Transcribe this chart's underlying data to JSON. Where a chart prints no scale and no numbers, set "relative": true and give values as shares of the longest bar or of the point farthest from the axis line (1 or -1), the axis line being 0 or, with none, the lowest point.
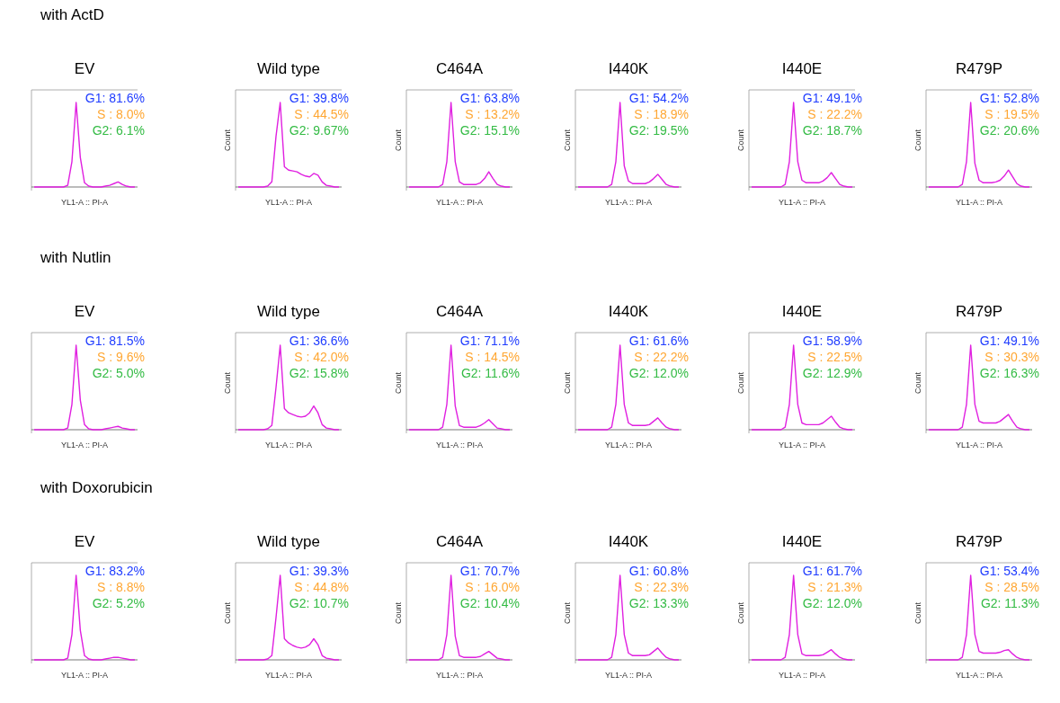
{
  "chart_data": [
    {
      "type": "other",
      "title": "with ActD"
    },
    {
      "type": "line",
      "title": "EV",
      "relative": true,
      "xlabel": "YL1-A :: PI-A",
      "annotations": [
        "G1: 81.6%",
        "S : 8.0%",
        "G2: 6.1%"
      ],
      "categories": [
        null,
        null,
        null,
        null,
        null,
        null,
        null,
        null,
        null,
        null,
        null,
        null,
        null,
        null,
        null,
        null,
        null,
        null,
        null,
        null,
        null,
        null,
        null,
        null,
        null
      ],
      "series": [
        {
          "color": "#e020e0",
          "values": [
            0,
            0,
            0,
            0,
            0,
            0,
            0,
            0,
            0.02,
            0.3,
            1,
            0.35,
            0.05,
            0.01,
            0,
            0,
            0,
            0.01,
            0.02,
            0.04,
            0.06,
            0.03,
            0.01,
            0,
            0
          ]
        }
      ]
    },
    {
      "type": "line",
      "title": "Wild type",
      "relative": true,
      "xlabel": "YL1-A :: PI-A",
      "ylabel": "Count",
      "annotations": [
        "G1: 39.8%",
        "S : 44.5%",
        "G2: 9.67%"
      ],
      "categories": [
        null,
        null,
        null,
        null,
        null,
        null,
        null,
        null,
        null,
        null,
        null,
        null,
        null,
        null,
        null,
        null,
        null,
        null,
        null,
        null,
        null,
        null,
        null,
        null,
        null
      ],
      "series": [
        {
          "color": "#e020e0",
          "values": [
            0,
            0,
            0,
            0,
            0,
            0,
            0,
            0.01,
            0.06,
            0.6,
            1,
            0.24,
            0.2,
            0.19,
            0.18,
            0.15,
            0.13,
            0.12,
            0.16,
            0.14,
            0.06,
            0.02,
            0.01,
            0,
            0
          ]
        }
      ]
    },
    {
      "type": "line",
      "title": "C464A",
      "relative": true,
      "xlabel": "YL1-A :: PI-A",
      "ylabel": "Count",
      "annotations": [
        "G1: 63.8%",
        "S : 13.2%",
        "G2: 15.1%"
      ],
      "categories": [
        null,
        null,
        null,
        null,
        null,
        null,
        null,
        null,
        null,
        null,
        null,
        null,
        null,
        null,
        null,
        null,
        null,
        null,
        null,
        null,
        null,
        null,
        null,
        null,
        null
      ],
      "series": [
        {
          "color": "#e020e0",
          "values": [
            0,
            0,
            0,
            0,
            0,
            0,
            0,
            0,
            0.03,
            0.3,
            1,
            0.3,
            0.06,
            0.03,
            0.03,
            0.03,
            0.03,
            0.05,
            0.1,
            0.18,
            0.1,
            0.03,
            0.01,
            0,
            0
          ]
        }
      ]
    },
    {
      "type": "line",
      "title": "I440K",
      "relative": true,
      "xlabel": "YL1-A :: PI-A",
      "ylabel": "Count",
      "annotations": [
        "G1: 54.2%",
        "S : 18.9%",
        "G2: 19.5%"
      ],
      "categories": [
        null,
        null,
        null,
        null,
        null,
        null,
        null,
        null,
        null,
        null,
        null,
        null,
        null,
        null,
        null,
        null,
        null,
        null,
        null,
        null,
        null,
        null,
        null,
        null,
        null
      ],
      "series": [
        {
          "color": "#e020e0",
          "values": [
            0,
            0,
            0,
            0,
            0,
            0,
            0,
            0,
            0.03,
            0.3,
            1,
            0.25,
            0.07,
            0.04,
            0.04,
            0.04,
            0.04,
            0.06,
            0.1,
            0.15,
            0.09,
            0.03,
            0.01,
            0,
            0
          ]
        }
      ]
    },
    {
      "type": "line",
      "title": "I440E",
      "relative": true,
      "xlabel": "YL1-A :: PI-A",
      "ylabel": "Count",
      "annotations": [
        "G1: 49.1%",
        "S : 22.2%",
        "G2: 18.7%"
      ],
      "categories": [
        null,
        null,
        null,
        null,
        null,
        null,
        null,
        null,
        null,
        null,
        null,
        null,
        null,
        null,
        null,
        null,
        null,
        null,
        null,
        null,
        null,
        null,
        null,
        null,
        null
      ],
      "series": [
        {
          "color": "#e020e0",
          "values": [
            0,
            0,
            0,
            0,
            0,
            0,
            0,
            0,
            0.03,
            0.3,
            1,
            0.3,
            0.08,
            0.05,
            0.05,
            0.05,
            0.05,
            0.07,
            0.11,
            0.17,
            0.1,
            0.03,
            0.01,
            0,
            0
          ]
        }
      ]
    },
    {
      "type": "line",
      "title": "R479P",
      "relative": true,
      "xlabel": "YL1-A :: PI-A",
      "ylabel": "Count",
      "annotations": [
        "G1: 52.8%",
        "S : 19.5%",
        "G2: 20.6%"
      ],
      "categories": [
        null,
        null,
        null,
        null,
        null,
        null,
        null,
        null,
        null,
        null,
        null,
        null,
        null,
        null,
        null,
        null,
        null,
        null,
        null,
        null,
        null,
        null,
        null,
        null,
        null
      ],
      "series": [
        {
          "color": "#e020e0",
          "values": [
            0,
            0,
            0,
            0,
            0,
            0,
            0,
            0,
            0.03,
            0.3,
            1,
            0.28,
            0.08,
            0.05,
            0.05,
            0.05,
            0.06,
            0.08,
            0.13,
            0.2,
            0.12,
            0.04,
            0.01,
            0,
            0
          ]
        }
      ]
    },
    {
      "type": "other",
      "title": "with Nutlin"
    },
    {
      "type": "line",
      "title": "EV",
      "relative": true,
      "xlabel": "YL1-A :: PI-A",
      "annotations": [
        "G1: 81.5%",
        "S : 9.6%",
        "G2: 5.0%"
      ],
      "categories": [
        null,
        null,
        null,
        null,
        null,
        null,
        null,
        null,
        null,
        null,
        null,
        null,
        null,
        null,
        null,
        null,
        null,
        null,
        null,
        null,
        null,
        null,
        null,
        null,
        null
      ],
      "series": [
        {
          "color": "#e020e0",
          "values": [
            0,
            0,
            0,
            0,
            0,
            0,
            0,
            0,
            0.02,
            0.3,
            1,
            0.35,
            0.06,
            0.01,
            0,
            0,
            0,
            0.01,
            0.02,
            0.03,
            0.04,
            0.02,
            0.01,
            0,
            0
          ]
        }
      ]
    },
    {
      "type": "line",
      "title": "Wild type",
      "relative": true,
      "xlabel": "YL1-A :: PI-A",
      "ylabel": "Count",
      "annotations": [
        "G1: 36.6%",
        "S : 42.0%",
        "G2: 15.8%"
      ],
      "categories": [
        null,
        null,
        null,
        null,
        null,
        null,
        null,
        null,
        null,
        null,
        null,
        null,
        null,
        null,
        null,
        null,
        null,
        null,
        null,
        null,
        null,
        null,
        null,
        null,
        null
      ],
      "series": [
        {
          "color": "#e020e0",
          "values": [
            0,
            0,
            0,
            0,
            0,
            0,
            0,
            0.01,
            0.05,
            0.5,
            1,
            0.25,
            0.2,
            0.18,
            0.16,
            0.15,
            0.16,
            0.2,
            0.28,
            0.2,
            0.06,
            0.02,
            0.01,
            0,
            0
          ]
        }
      ]
    },
    {
      "type": "line",
      "title": "C464A",
      "relative": true,
      "xlabel": "YL1-A :: PI-A",
      "ylabel": "Count",
      "annotations": [
        "G1: 71.1%",
        "S : 14.5%",
        "G2: 11.6%"
      ],
      "categories": [
        null,
        null,
        null,
        null,
        null,
        null,
        null,
        null,
        null,
        null,
        null,
        null,
        null,
        null,
        null,
        null,
        null,
        null,
        null,
        null,
        null,
        null,
        null,
        null,
        null
      ],
      "series": [
        {
          "color": "#e020e0",
          "values": [
            0,
            0,
            0,
            0,
            0,
            0,
            0,
            0,
            0.03,
            0.3,
            1,
            0.28,
            0.05,
            0.03,
            0.03,
            0.03,
            0.03,
            0.05,
            0.08,
            0.12,
            0.07,
            0.02,
            0.01,
            0,
            0
          ]
        }
      ]
    },
    {
      "type": "line",
      "title": "I440K",
      "relative": true,
      "xlabel": "YL1-A :: PI-A",
      "ylabel": "Count",
      "annotations": [
        "G1: 61.6%",
        "S : 22.2%",
        "G2: 12.0%"
      ],
      "categories": [
        null,
        null,
        null,
        null,
        null,
        null,
        null,
        null,
        null,
        null,
        null,
        null,
        null,
        null,
        null,
        null,
        null,
        null,
        null,
        null,
        null,
        null,
        null,
        null,
        null
      ],
      "series": [
        {
          "color": "#e020e0",
          "values": [
            0,
            0,
            0,
            0,
            0,
            0,
            0,
            0,
            0.03,
            0.3,
            1,
            0.3,
            0.08,
            0.05,
            0.05,
            0.05,
            0.05,
            0.06,
            0.1,
            0.14,
            0.08,
            0.03,
            0.01,
            0,
            0
          ]
        }
      ]
    },
    {
      "type": "line",
      "title": "I440E",
      "relative": true,
      "xlabel": "YL1-A :: PI-A",
      "ylabel": "Count",
      "annotations": [
        "G1: 58.9%",
        "S : 22.5%",
        "G2: 12.9%"
      ],
      "categories": [
        null,
        null,
        null,
        null,
        null,
        null,
        null,
        null,
        null,
        null,
        null,
        null,
        null,
        null,
        null,
        null,
        null,
        null,
        null,
        null,
        null,
        null,
        null,
        null,
        null
      ],
      "series": [
        {
          "color": "#e020e0",
          "values": [
            0,
            0,
            0,
            0,
            0,
            0,
            0,
            0,
            0.03,
            0.3,
            1,
            0.3,
            0.08,
            0.06,
            0.06,
            0.06,
            0.06,
            0.08,
            0.12,
            0.16,
            0.09,
            0.03,
            0.01,
            0,
            0
          ]
        }
      ]
    },
    {
      "type": "line",
      "title": "R479P",
      "relative": true,
      "xlabel": "YL1-A :: PI-A",
      "ylabel": "Count",
      "annotations": [
        "G1: 49.1%",
        "S : 30.3%",
        "G2: 16.3%"
      ],
      "categories": [
        null,
        null,
        null,
        null,
        null,
        null,
        null,
        null,
        null,
        null,
        null,
        null,
        null,
        null,
        null,
        null,
        null,
        null,
        null,
        null,
        null,
        null,
        null,
        null,
        null
      ],
      "series": [
        {
          "color": "#e020e0",
          "values": [
            0,
            0,
            0,
            0,
            0,
            0,
            0,
            0,
            0.03,
            0.3,
            1,
            0.3,
            0.1,
            0.08,
            0.08,
            0.08,
            0.08,
            0.1,
            0.14,
            0.18,
            0.1,
            0.03,
            0.01,
            0,
            0
          ]
        }
      ]
    },
    {
      "type": "other",
      "title": "with Doxorubicin"
    },
    {
      "type": "line",
      "title": "EV",
      "relative": true,
      "xlabel": "YL1-A :: PI-A",
      "annotations": [
        "G1: 83.2%",
        "S : 8.8%",
        "G2: 5.2%"
      ],
      "categories": [
        null,
        null,
        null,
        null,
        null,
        null,
        null,
        null,
        null,
        null,
        null,
        null,
        null,
        null,
        null,
        null,
        null,
        null,
        null,
        null,
        null,
        null,
        null,
        null,
        null
      ],
      "series": [
        {
          "color": "#e020e0",
          "values": [
            0,
            0,
            0,
            0,
            0,
            0,
            0,
            0,
            0.02,
            0.3,
            1,
            0.35,
            0.05,
            0.01,
            0,
            0,
            0,
            0.01,
            0.02,
            0.03,
            0.03,
            0.02,
            0.01,
            0,
            0
          ]
        }
      ]
    },
    {
      "type": "line",
      "title": "Wild type",
      "relative": true,
      "xlabel": "YL1-A :: PI-A",
      "ylabel": "Count",
      "annotations": [
        "G1: 39.3%",
        "S : 44.8%",
        "G2: 10.7%"
      ],
      "categories": [
        null,
        null,
        null,
        null,
        null,
        null,
        null,
        null,
        null,
        null,
        null,
        null,
        null,
        null,
        null,
        null,
        null,
        null,
        null,
        null,
        null,
        null,
        null,
        null,
        null
      ],
      "series": [
        {
          "color": "#e020e0",
          "values": [
            0,
            0,
            0,
            0,
            0,
            0,
            0,
            0.01,
            0.05,
            0.5,
            1,
            0.25,
            0.2,
            0.17,
            0.15,
            0.14,
            0.15,
            0.18,
            0.25,
            0.18,
            0.05,
            0.02,
            0.01,
            0,
            0
          ]
        }
      ]
    },
    {
      "type": "line",
      "title": "C464A",
      "relative": true,
      "xlabel": "YL1-A :: PI-A",
      "ylabel": "Count",
      "annotations": [
        "G1: 70.7%",
        "S : 16.0%",
        "G2: 10.4%"
      ],
      "categories": [
        null,
        null,
        null,
        null,
        null,
        null,
        null,
        null,
        null,
        null,
        null,
        null,
        null,
        null,
        null,
        null,
        null,
        null,
        null,
        null,
        null,
        null,
        null,
        null,
        null
      ],
      "series": [
        {
          "color": "#e020e0",
          "values": [
            0,
            0,
            0,
            0,
            0,
            0,
            0,
            0,
            0.03,
            0.3,
            1,
            0.28,
            0.05,
            0.03,
            0.03,
            0.03,
            0.03,
            0.04,
            0.07,
            0.1,
            0.06,
            0.02,
            0.01,
            0,
            0
          ]
        }
      ]
    },
    {
      "type": "line",
      "title": "I440K",
      "relative": true,
      "xlabel": "YL1-A :: PI-A",
      "ylabel": "Count",
      "annotations": [
        "G1: 60.8%",
        "S : 22.3%",
        "G2: 13.3%"
      ],
      "categories": [
        null,
        null,
        null,
        null,
        null,
        null,
        null,
        null,
        null,
        null,
        null,
        null,
        null,
        null,
        null,
        null,
        null,
        null,
        null,
        null,
        null,
        null,
        null,
        null,
        null
      ],
      "series": [
        {
          "color": "#e020e0",
          "values": [
            0,
            0,
            0,
            0,
            0,
            0,
            0,
            0,
            0.03,
            0.3,
            1,
            0.3,
            0.08,
            0.05,
            0.05,
            0.05,
            0.05,
            0.06,
            0.1,
            0.14,
            0.08,
            0.03,
            0.01,
            0,
            0
          ]
        }
      ]
    },
    {
      "type": "line",
      "title": "I440E",
      "relative": true,
      "xlabel": "YL1-A :: PI-A",
      "ylabel": "Count",
      "annotations": [
        "G1: 61.7%",
        "S : 21.3%",
        "G2: 12.0%"
      ],
      "categories": [
        null,
        null,
        null,
        null,
        null,
        null,
        null,
        null,
        null,
        null,
        null,
        null,
        null,
        null,
        null,
        null,
        null,
        null,
        null,
        null,
        null,
        null,
        null,
        null,
        null
      ],
      "series": [
        {
          "color": "#e020e0",
          "values": [
            0,
            0,
            0,
            0,
            0,
            0,
            0,
            0,
            0.03,
            0.3,
            1,
            0.3,
            0.07,
            0.05,
            0.05,
            0.05,
            0.05,
            0.06,
            0.09,
            0.12,
            0.07,
            0.03,
            0.01,
            0,
            0
          ]
        }
      ]
    },
    {
      "type": "line",
      "title": "R479P",
      "relative": true,
      "xlabel": "YL1-A :: PI-A",
      "ylabel": "Count",
      "annotations": [
        "G1: 53.4%",
        "S : 28.5%",
        "G2: 11.3%"
      ],
      "categories": [
        null,
        null,
        null,
        null,
        null,
        null,
        null,
        null,
        null,
        null,
        null,
        null,
        null,
        null,
        null,
        null,
        null,
        null,
        null,
        null,
        null,
        null,
        null,
        null,
        null
      ],
      "series": [
        {
          "color": "#e020e0",
          "values": [
            0,
            0,
            0,
            0,
            0,
            0,
            0,
            0,
            0.03,
            0.3,
            1,
            0.3,
            0.1,
            0.08,
            0.08,
            0.08,
            0.08,
            0.09,
            0.11,
            0.12,
            0.07,
            0.03,
            0.01,
            0,
            0
          ]
        }
      ]
    }
  ]
}
